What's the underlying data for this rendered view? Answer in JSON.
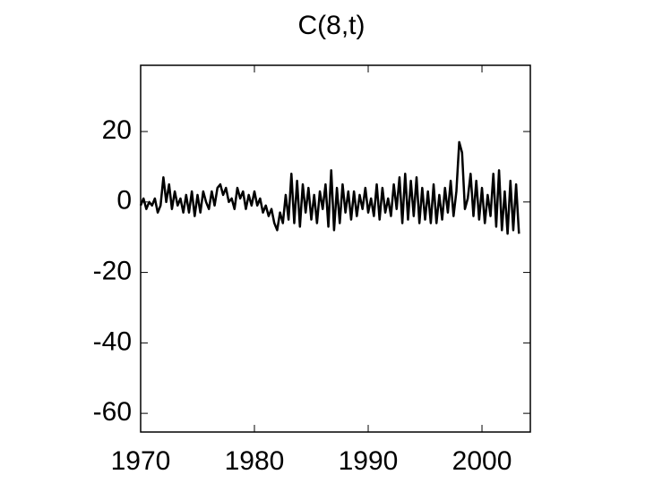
{
  "chart_data": {
    "type": "line",
    "title": "C(8,t)",
    "x": [
      1970,
      1970.25,
      1970.5,
      1970.75,
      1971,
      1971.25,
      1971.5,
      1971.75,
      1972,
      1972.25,
      1972.5,
      1972.75,
      1973,
      1973.25,
      1973.5,
      1973.75,
      1974,
      1974.25,
      1974.5,
      1974.75,
      1975,
      1975.25,
      1975.5,
      1975.75,
      1976,
      1976.25,
      1976.5,
      1976.75,
      1977,
      1977.25,
      1977.5,
      1977.75,
      1978,
      1978.25,
      1978.5,
      1978.75,
      1979,
      1979.25,
      1979.5,
      1979.75,
      1980,
      1980.25,
      1980.5,
      1980.75,
      1981,
      1981.25,
      1981.5,
      1981.75,
      1982,
      1982.25,
      1982.5,
      1982.75,
      1983,
      1983.25,
      1983.5,
      1983.75,
      1984,
      1984.25,
      1984.5,
      1984.75,
      1985,
      1985.25,
      1985.5,
      1985.75,
      1986,
      1986.25,
      1986.5,
      1986.75,
      1987,
      1987.25,
      1987.5,
      1987.75,
      1988,
      1988.25,
      1988.5,
      1988.75,
      1989,
      1989.25,
      1989.5,
      1989.75,
      1990,
      1990.25,
      1990.5,
      1990.75,
      1991,
      1991.25,
      1991.5,
      1991.75,
      1992,
      1992.25,
      1992.5,
      1992.75,
      1993,
      1993.25,
      1993.5,
      1993.75,
      1994,
      1994.25,
      1994.5,
      1994.75,
      1995,
      1995.25,
      1995.5,
      1995.75,
      1996,
      1996.25,
      1996.5,
      1996.75,
      1997,
      1997.25,
      1997.5,
      1997.75,
      1998,
      1998.25,
      1998.5,
      1998.75,
      1999,
      1999.25,
      1999.5,
      1999.75,
      2000,
      2000.25,
      2000.5,
      2000.75,
      2001,
      2001.25,
      2001.5,
      2001.75,
      2002,
      2002.25,
      2002.5,
      2002.75,
      2003,
      2003.25
    ],
    "series": [
      {
        "color": "#000000",
        "values": [
          -1,
          1,
          -2,
          0,
          -1,
          1,
          -3,
          -1,
          7,
          0,
          5,
          -2,
          3,
          -1,
          1,
          -3,
          2,
          -3,
          3,
          -4,
          2,
          -3,
          3,
          0,
          -2,
          3,
          -1,
          4,
          5,
          2,
          4,
          0,
          1,
          -2,
          4,
          1,
          3,
          -2,
          2,
          -1,
          3,
          -1,
          1,
          -3,
          -1,
          -4,
          -2,
          -6,
          -8,
          -3,
          -6,
          2,
          -5,
          8,
          -6,
          6,
          -7,
          5,
          -3,
          4,
          -5,
          2,
          -6,
          3,
          -2,
          5,
          -7,
          9,
          -8,
          4,
          -6,
          5,
          -3,
          3,
          -5,
          3,
          -4,
          2,
          -2,
          4,
          -3,
          1,
          -4,
          5,
          -5,
          4,
          -3,
          1,
          -4,
          5,
          -2,
          7,
          -6,
          8,
          -5,
          6,
          -4,
          7,
          -6,
          4,
          -5,
          3,
          -6,
          5,
          -6,
          2,
          -5,
          4,
          -3,
          6,
          -4,
          3,
          17,
          14,
          -2,
          1,
          8,
          -4,
          6,
          -5,
          4,
          -6,
          2,
          -4,
          8,
          -7,
          9,
          -8,
          3,
          -9,
          6,
          -8,
          5,
          -9
        ]
      }
    ],
    "xlim": [
      1970,
      2004.25
    ],
    "xticks": [
      1970,
      1980,
      1990,
      2000
    ],
    "ylim": [
      -65.3,
      38.8
    ],
    "yticks": [
      -60,
      -40,
      -20,
      0,
      20
    ],
    "grid": false
  }
}
